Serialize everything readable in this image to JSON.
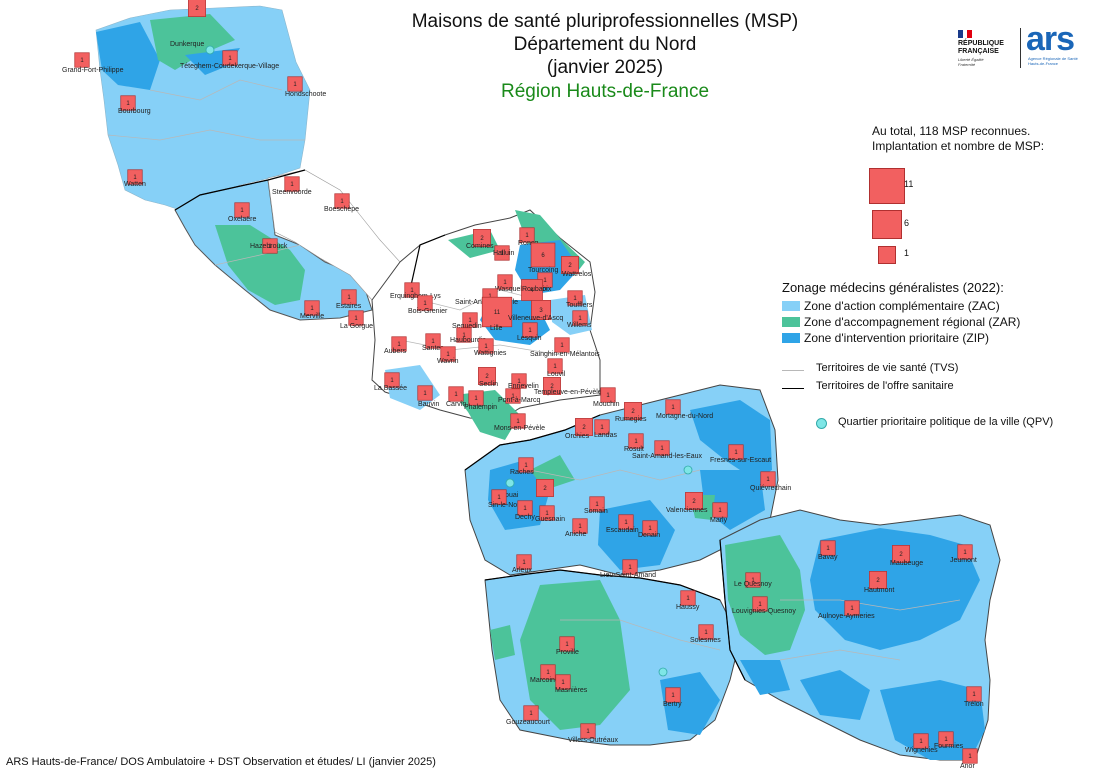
{
  "title": {
    "line1": "Maisons de santé pluriprofessionnelles (MSP)",
    "line2": "Département du Nord",
    "line3": "(janvier 2025)",
    "subtitle": "Région Hauts-de-France"
  },
  "logos": {
    "republique": "RÉPUBLIQUE FRANÇAISE",
    "republique_motto": "Liberté Égalité Fraternité",
    "ars": "ars",
    "ars_sub": "Agence Régionale de Santé Hauts-de-France"
  },
  "legend_msp": {
    "total_line1": "Au total, 118 MSP reconnues.",
    "total_line2": "Implantation et nombre de MSP:",
    "scale": [
      {
        "value": 11,
        "label": "11"
      },
      {
        "value": 6,
        "label": "6"
      },
      {
        "value": 1,
        "label": "1"
      }
    ]
  },
  "legend_zonage": {
    "title": "Zonage médecins généralistes (2022):",
    "items": [
      {
        "label": "Zone d'action complémentaire (ZAC)",
        "color": "#86d0f7"
      },
      {
        "label": "Zone d'accompagnement régional (ZAR)",
        "color": "#4cc39a"
      },
      {
        "label": "Zone d'intervention prioritaire (ZIP)",
        "color": "#2fa4e7"
      }
    ]
  },
  "legend_lines": [
    {
      "label": "Territoires de vie santé (TVS)",
      "color": "#b8b8b8"
    },
    {
      "label": "Territoires de l'offre sanitaire",
      "color": "#000000"
    }
  ],
  "legend_qpv": {
    "label": "Quartier prioritaire politique de la ville (QPV)",
    "color": "#7ee6e6"
  },
  "source": "ARS Hauts-de-France/ DOS Ambulatoire + DST Observation et études/ LI (janvier 2025)",
  "places": [
    {
      "name": "Dunkerque",
      "count": 2
    },
    {
      "name": "Grand-Fort-Philippe",
      "count": 1
    },
    {
      "name": "Téteghem-Coudekerque-Village",
      "count": 1
    },
    {
      "name": "Hondschoote",
      "count": 1
    },
    {
      "name": "Bourbourg",
      "count": 1
    },
    {
      "name": "Watten",
      "count": 1
    },
    {
      "name": "Steenvoorde",
      "count": 1
    },
    {
      "name": "Boeschèpe",
      "count": 1
    },
    {
      "name": "Oxelaëre",
      "count": 1
    },
    {
      "name": "Hazebrouck",
      "count": 1
    },
    {
      "name": "Estaires",
      "count": 1
    },
    {
      "name": "Merville",
      "count": 1
    },
    {
      "name": "La Gorgue",
      "count": 1
    },
    {
      "name": "Erquinghem-Lys",
      "count": 1
    },
    {
      "name": "Bois-Grenier",
      "count": 1
    },
    {
      "name": "Comines",
      "count": 2
    },
    {
      "name": "Halluin",
      "count": 1
    },
    {
      "name": "Roncq",
      "count": 1
    },
    {
      "name": "Tourcoing",
      "count": 6
    },
    {
      "name": "Wattrelos",
      "count": 2
    },
    {
      "name": "Wasquehal",
      "count": 1
    },
    {
      "name": "Croix",
      "count": 1
    },
    {
      "name": "Roubaix",
      "count": 4
    },
    {
      "name": "Toufflers",
      "count": 1
    },
    {
      "name": "Saint-André-lez-Lille",
      "count": 1
    },
    {
      "name": "Lille",
      "count": 11
    },
    {
      "name": "Villeneuve-d'Ascq",
      "count": 3
    },
    {
      "name": "Willems",
      "count": 1
    },
    {
      "name": "Sequedin",
      "count": 1
    },
    {
      "name": "Haubourdin",
      "count": 1
    },
    {
      "name": "Wattignies",
      "count": 1
    },
    {
      "name": "Lesquin",
      "count": 1
    },
    {
      "name": "Sainghin-en-Mélantois",
      "count": 1
    },
    {
      "name": "Aubers",
      "count": 1
    },
    {
      "name": "Santes",
      "count": 1
    },
    {
      "name": "Wavrin",
      "count": 1
    },
    {
      "name": "Louvil",
      "count": 1
    },
    {
      "name": "Seclin",
      "count": 2
    },
    {
      "name": "Ennevelin",
      "count": 1
    },
    {
      "name": "Templeuve-en-Pévèle",
      "count": 2
    },
    {
      "name": "La Bassée",
      "count": 1
    },
    {
      "name": "Phalempin",
      "count": 1
    },
    {
      "name": "Pont-à-Marcq",
      "count": 1
    },
    {
      "name": "Bauvin",
      "count": 1
    },
    {
      "name": "Carvin",
      "count": 1
    },
    {
      "name": "Mouchin",
      "count": 1
    },
    {
      "name": "Mons-en-Pévèle",
      "count": 1
    },
    {
      "name": "Orchies",
      "count": 2
    },
    {
      "name": "Landas",
      "count": 1
    },
    {
      "name": "Rumegies",
      "count": 2
    },
    {
      "name": "Mortagne-du-Nord",
      "count": 1
    },
    {
      "name": "Rosult",
      "count": 1
    },
    {
      "name": "Saint-Amand-les-Eaux",
      "count": 1
    },
    {
      "name": "Fresnes-sur-Escaut",
      "count": 1
    },
    {
      "name": "Raches",
      "count": 1
    },
    {
      "name": "Quiévrechain",
      "count": 1
    },
    {
      "name": "Douai",
      "count": 2
    },
    {
      "name": "Sin-le-Noble",
      "count": 1
    },
    {
      "name": "Dechy",
      "count": 1
    },
    {
      "name": "Guesnain",
      "count": 1
    },
    {
      "name": "Somain",
      "count": 1
    },
    {
      "name": "Valenciennes",
      "count": 2
    },
    {
      "name": "Marly",
      "count": 1
    },
    {
      "name": "Aniche",
      "count": 1
    },
    {
      "name": "Escaudain",
      "count": 1
    },
    {
      "name": "Denain",
      "count": 1
    },
    {
      "name": "Bavay",
      "count": 1
    },
    {
      "name": "Maubeuge",
      "count": 2
    },
    {
      "name": "Jeumont",
      "count": 1
    },
    {
      "name": "Arleux",
      "count": 1
    },
    {
      "name": "Lieu-Saint-Amand",
      "count": 1
    },
    {
      "name": "Le Quesnoy",
      "count": 1
    },
    {
      "name": "Hautmont",
      "count": 2
    },
    {
      "name": "Haussy",
      "count": 1
    },
    {
      "name": "Louvignies-Quesnoy",
      "count": 1
    },
    {
      "name": "Aulnoye-Aymeries",
      "count": 1
    },
    {
      "name": "Solesmes",
      "count": 1
    },
    {
      "name": "Proville",
      "count": 1
    },
    {
      "name": "Marcoing",
      "count": 1
    },
    {
      "name": "Masnières",
      "count": 1
    },
    {
      "name": "Bertry",
      "count": 1
    },
    {
      "name": "Trélon",
      "count": 1
    },
    {
      "name": "Gouzeaucourt",
      "count": 1
    },
    {
      "name": "Villers-Outréaux",
      "count": 1
    },
    {
      "name": "Wignehies",
      "count": 1
    },
    {
      "name": "Fourmies",
      "count": 1
    },
    {
      "name": "Anor",
      "count": 1
    }
  ]
}
